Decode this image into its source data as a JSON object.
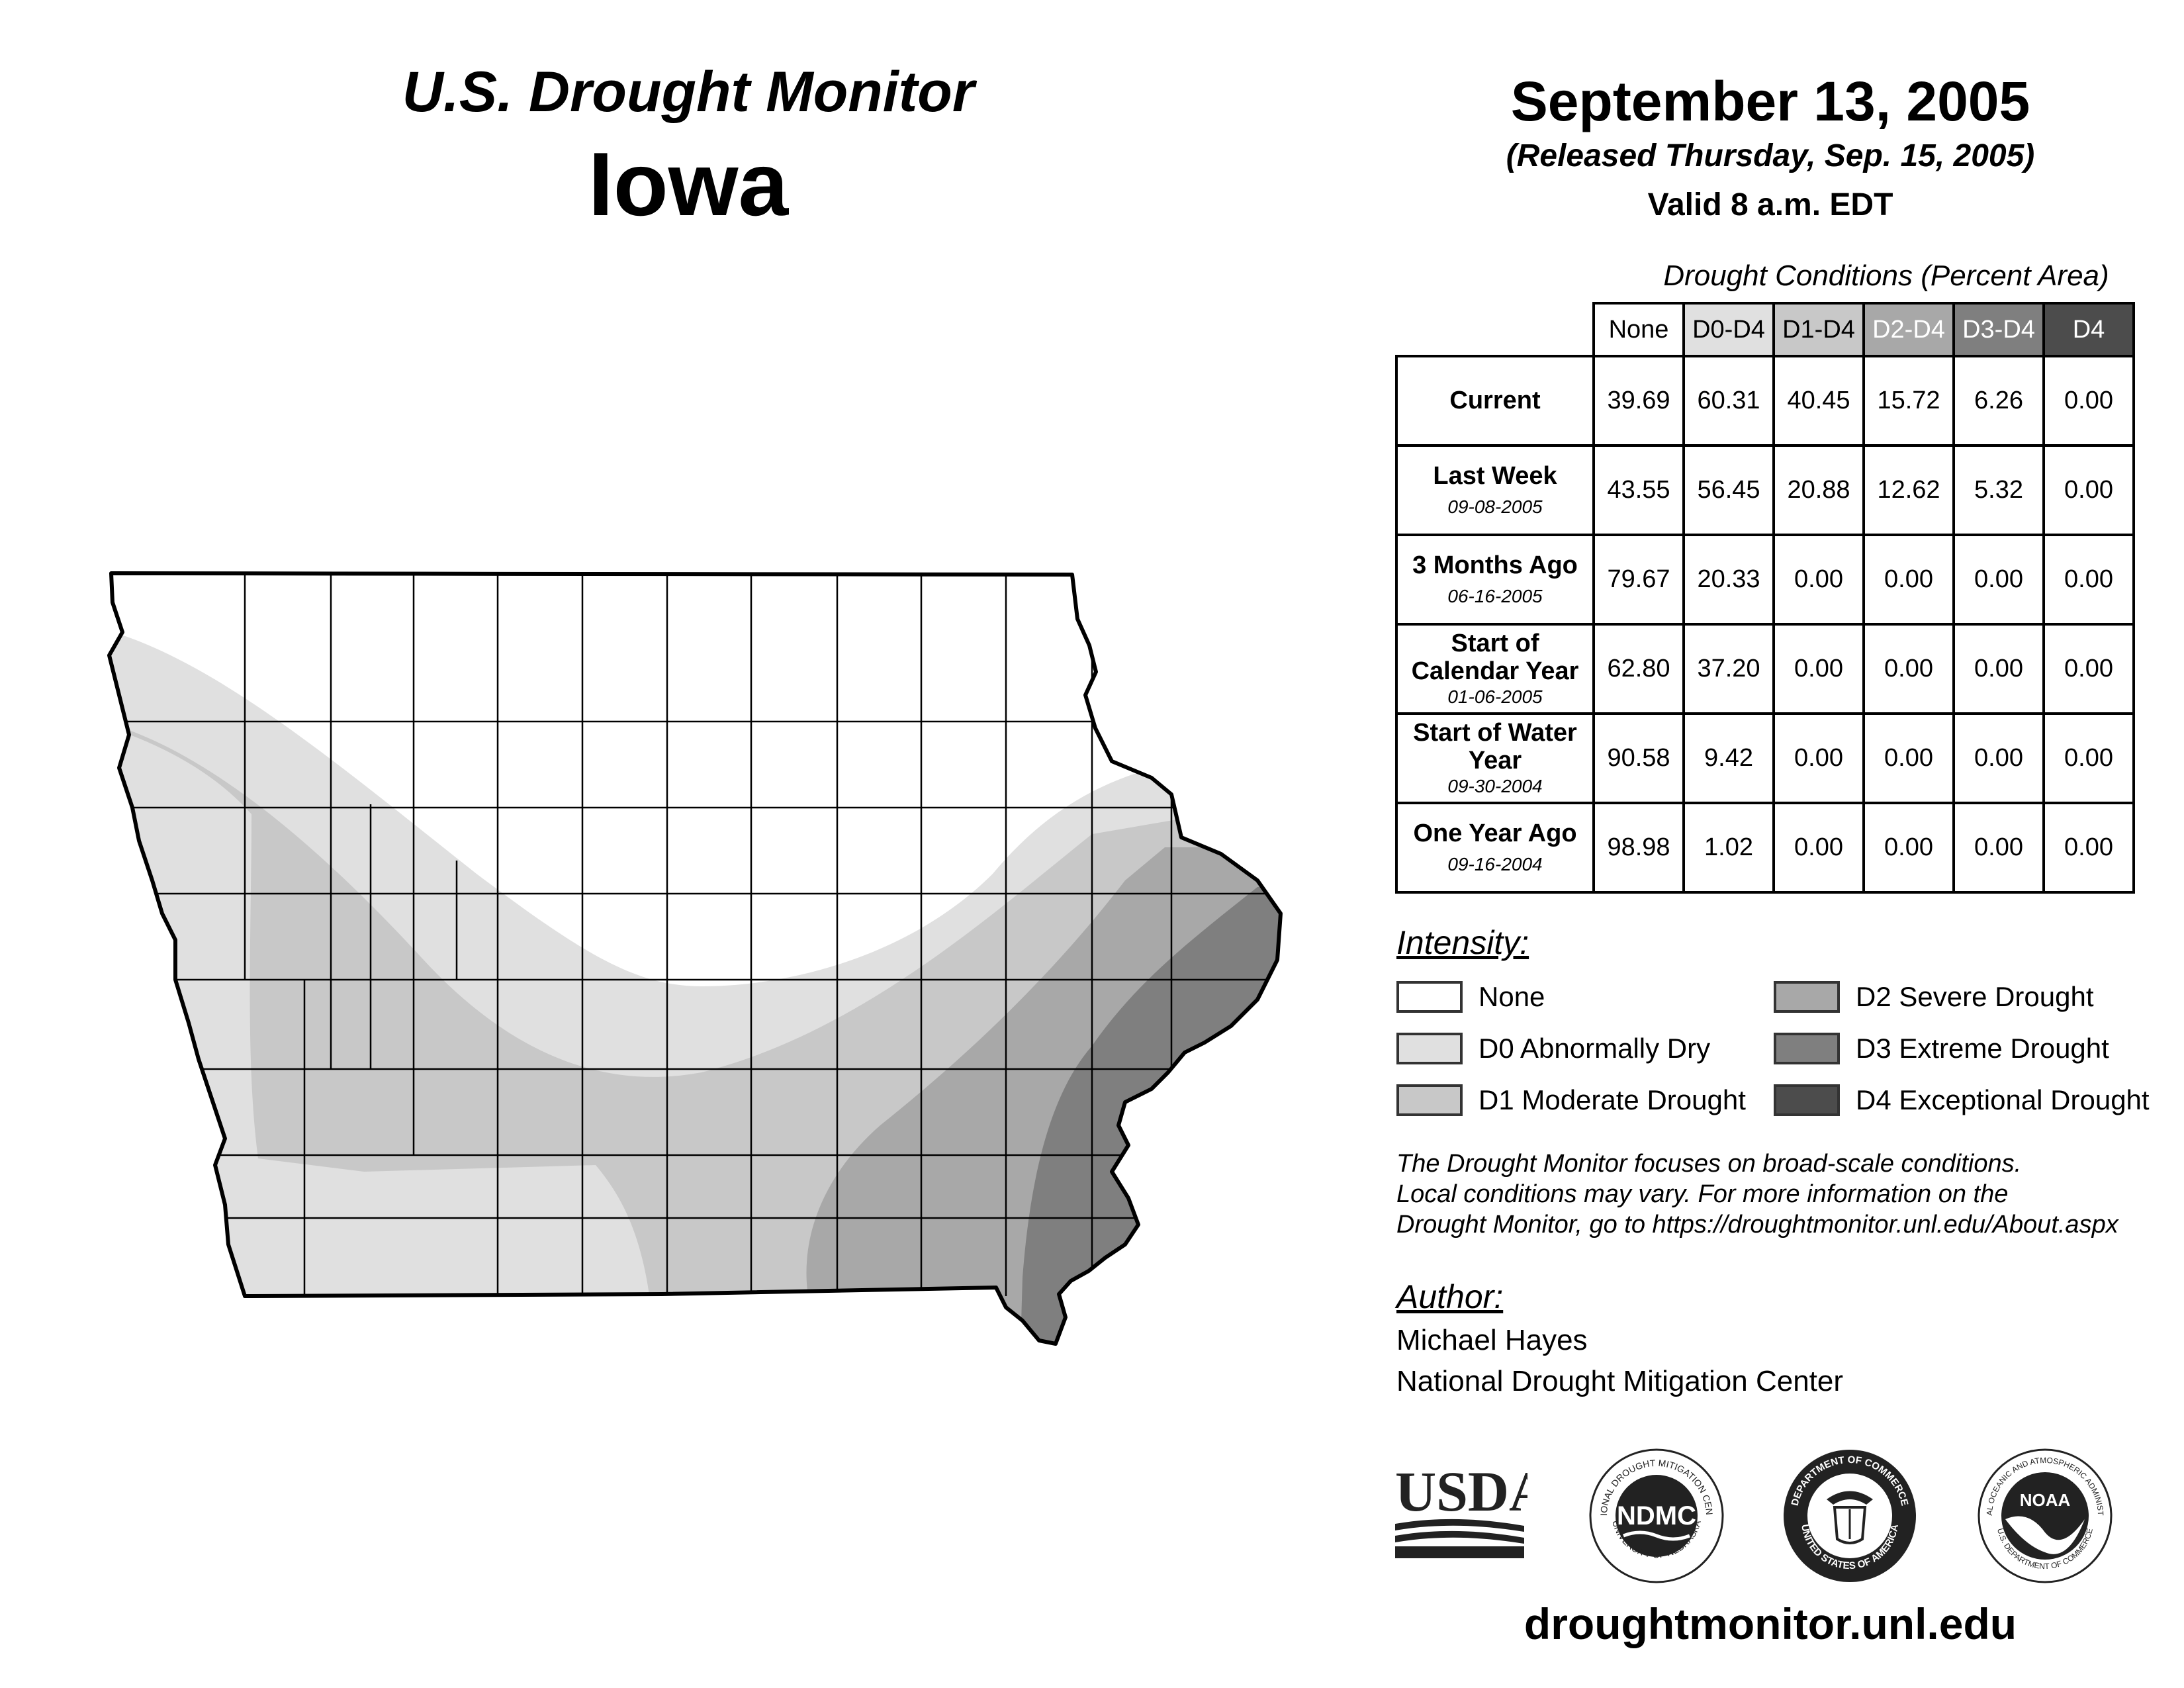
{
  "header": {
    "title": "U.S. Drought Monitor",
    "state": "Iowa",
    "date": "September 13, 2005",
    "released": "(Released Thursday, Sep. 15, 2005)",
    "valid": "Valid 8 a.m. EDT"
  },
  "stats": {
    "title": "Drought Conditions (Percent Area)",
    "columns": [
      "None",
      "D0-D4",
      "D1-D4",
      "D2-D4",
      "D3-D4",
      "D4"
    ],
    "rows": [
      {
        "label": "Current",
        "date": "",
        "values": [
          "39.69",
          "60.31",
          "40.45",
          "15.72",
          "6.26",
          "0.00"
        ]
      },
      {
        "label": "Last Week",
        "date": "09-08-2005",
        "values": [
          "43.55",
          "56.45",
          "20.88",
          "12.62",
          "5.32",
          "0.00"
        ]
      },
      {
        "label": "3 Months Ago",
        "date": "06-16-2005",
        "values": [
          "79.67",
          "20.33",
          "0.00",
          "0.00",
          "0.00",
          "0.00"
        ]
      },
      {
        "label": "Start of Calendar Year",
        "date": "01-06-2005",
        "values": [
          "62.80",
          "37.20",
          "0.00",
          "0.00",
          "0.00",
          "0.00"
        ]
      },
      {
        "label": "Start of Water Year",
        "date": "09-30-2004",
        "values": [
          "90.58",
          "9.42",
          "0.00",
          "0.00",
          "0.00",
          "0.00"
        ]
      },
      {
        "label": "One Year Ago",
        "date": "09-16-2004",
        "values": [
          "98.98",
          "1.02",
          "0.00",
          "0.00",
          "0.00",
          "0.00"
        ]
      }
    ]
  },
  "legend": {
    "title": "Intensity:",
    "items": [
      {
        "label": "None",
        "color": "#ffffff"
      },
      {
        "label": "D0 Abnormally Dry",
        "color": "#e0e0e0"
      },
      {
        "label": "D1 Moderate Drought",
        "color": "#c8c8c8"
      },
      {
        "label": "D2 Severe Drought",
        "color": "#a8a8a8"
      },
      {
        "label": "D3 Extreme Drought",
        "color": "#7f7f7f"
      },
      {
        "label": "D4 Exceptional Drought",
        "color": "#4c4c4c"
      }
    ]
  },
  "note": {
    "line1": "The Drought Monitor focuses on broad-scale conditions.",
    "line2": "Local conditions may vary. For more information on the",
    "line3": "Drought Monitor, go to https://droughtmonitor.unl.edu/About.aspx"
  },
  "author": {
    "title": "Author:",
    "name": "Michael Hayes",
    "org": "National Drought Mitigation Center"
  },
  "logos": {
    "usda": "USDA",
    "ndmc": "NDMC",
    "ndmc_ring_top": "NATIONAL DROUGHT MITIGATION CENTER",
    "ndmc_ring_bottom": "UNIVERSITY OF NEBRASKA",
    "doc_ring_top": "DEPARTMENT OF COMMERCE",
    "doc_ring_bottom": "UNITED STATES OF AMERICA",
    "noaa": "NOAA",
    "noaa_ring_top": "NATIONAL OCEANIC AND ATMOSPHERIC ADMINISTRATION",
    "noaa_ring_bottom": "U.S. DEPARTMENT OF COMMERCE"
  },
  "url": "droughtmonitor.unl.edu"
}
